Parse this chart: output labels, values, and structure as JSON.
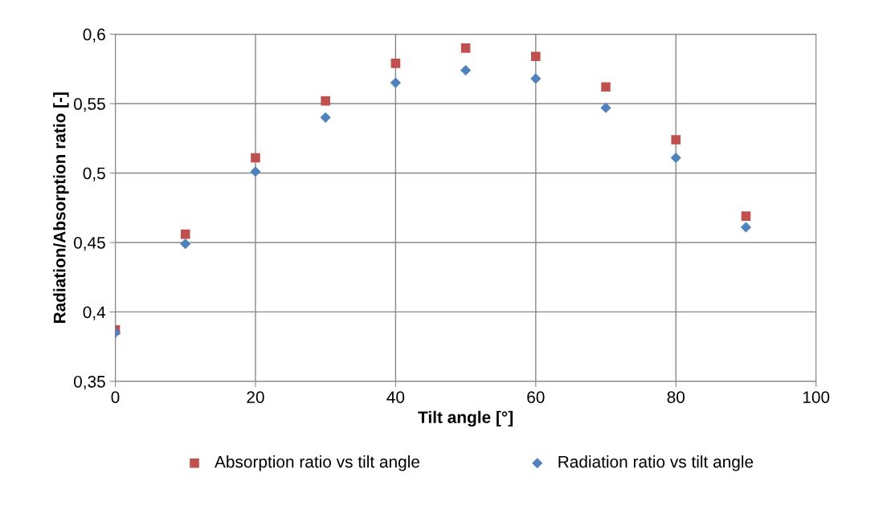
{
  "chart_data": {
    "type": "scatter",
    "xlabel": "Tilt angle [°]",
    "ylabel": "Radiation/Absorption ratio [-]",
    "x": [
      0,
      10,
      20,
      30,
      40,
      50,
      60,
      70,
      80,
      90
    ],
    "series": [
      {
        "name": "Absorption ratio vs tilt angle",
        "color": "#c0504d",
        "marker": "square",
        "values": [
          0.387,
          0.456,
          0.511,
          0.552,
          0.579,
          0.59,
          0.584,
          0.562,
          0.524,
          0.469
        ]
      },
      {
        "name": "Radiation ratio vs tilt angle",
        "color": "#4f81bd",
        "marker": "diamond",
        "values": [
          0.385,
          0.449,
          0.501,
          0.54,
          0.565,
          0.574,
          0.568,
          0.547,
          0.511,
          0.461
        ]
      }
    ],
    "xlim": [
      0,
      100
    ],
    "xticks": [
      0,
      20,
      40,
      60,
      80,
      100
    ],
    "ylim": [
      0.35,
      0.6
    ],
    "yticks": [
      {
        "value": 0.35,
        "label": "0,35"
      },
      {
        "value": 0.4,
        "label": "0,4"
      },
      {
        "value": 0.45,
        "label": "0,45"
      },
      {
        "value": 0.5,
        "label": "0,5"
      },
      {
        "value": 0.55,
        "label": "0,55"
      },
      {
        "value": 0.6,
        "label": "0,6"
      }
    ],
    "grid": true,
    "legend": "bottom"
  }
}
